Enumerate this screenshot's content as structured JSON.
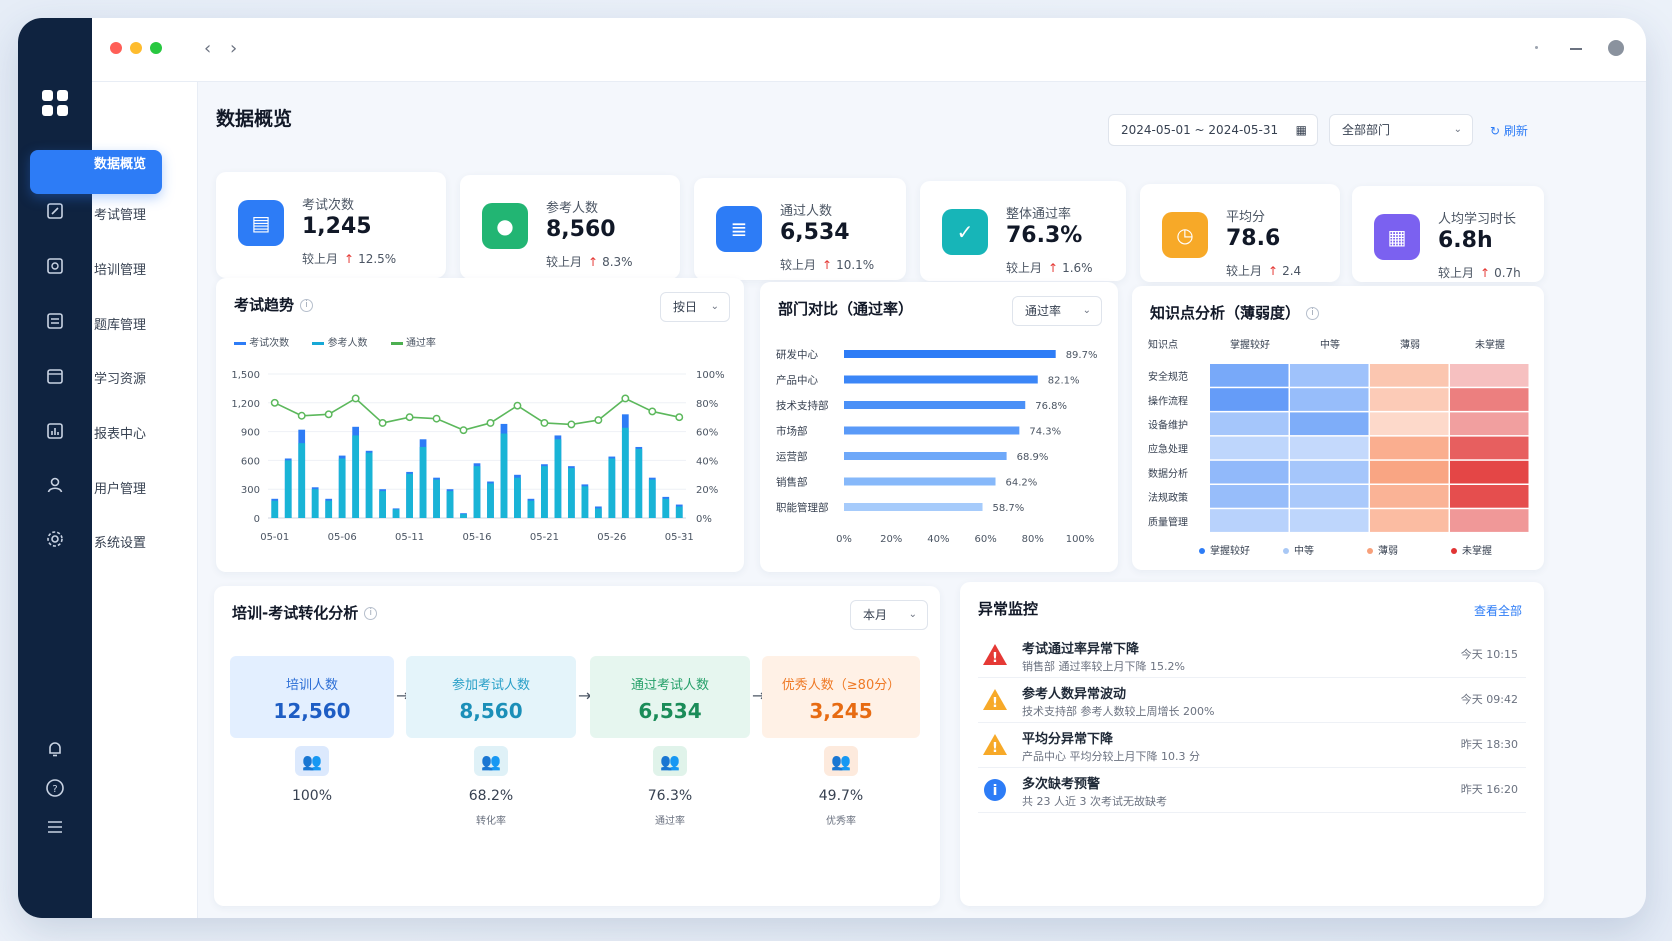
{
  "window": {
    "title": "数据概览"
  },
  "colors": {
    "accent": "#2d7cf6",
    "rail": "#0f2340",
    "up": "#e53935"
  },
  "sidebar": {
    "items": [
      {
        "label": "数据概览",
        "icon": "pie-chart-icon",
        "active": true
      },
      {
        "label": "考试管理",
        "icon": "edit-icon"
      },
      {
        "label": "培训管理",
        "icon": "training-icon"
      },
      {
        "label": "题库管理",
        "icon": "question-bank-icon"
      },
      {
        "label": "学习资源",
        "icon": "folder-icon"
      },
      {
        "label": "报表中心",
        "icon": "report-icon"
      },
      {
        "label": "用户管理",
        "icon": "user-icon"
      },
      {
        "label": "系统设置",
        "icon": "gear-icon"
      }
    ]
  },
  "header": {
    "title": "数据概览",
    "date_range": "2024-05-01 ~ 2024-05-31",
    "dept_select": "全部部门",
    "refresh_label": "刷新"
  },
  "kpis": [
    {
      "label": "考试次数",
      "value": "1,245",
      "compare": "较上月",
      "change": "12.5%",
      "color": "#2d7cf6",
      "icon": "clipboard-icon"
    },
    {
      "label": "参考人数",
      "value": "8,560",
      "compare": "较上月",
      "change": "8.3%",
      "color": "#22b573",
      "icon": "users-icon"
    },
    {
      "label": "通过人数",
      "value": "6,534",
      "compare": "较上月",
      "change": "10.1%",
      "color": "#2d7cf6",
      "icon": "document-icon"
    },
    {
      "label": "整体通过率",
      "value": "76.3%",
      "compare": "较上月",
      "change": "1.6%",
      "color": "#17b5b8",
      "icon": "check-icon"
    },
    {
      "label": "平均分",
      "value": "78.6",
      "compare": "较上月",
      "change": "2.4",
      "color": "#f7a928",
      "icon": "clock-icon"
    },
    {
      "label": "人均学习时长",
      "value": "6.8h",
      "compare": "较上月",
      "change": "0.7h",
      "color": "#7b61f0",
      "icon": "calendar-icon"
    }
  ],
  "trend": {
    "title": "考试趋势",
    "period_select": "按日",
    "legend": [
      "考试次数",
      "参考人数",
      "通过率"
    ]
  },
  "dept": {
    "title": "部门对比（通过率）",
    "select": "通过率"
  },
  "knowledge": {
    "title": "知识点分析（薄弱度）",
    "col_header": "知识点",
    "columns": [
      "掌握较好",
      "中等",
      "薄弱",
      "未掌握"
    ],
    "rows": [
      "安全规范",
      "操作流程",
      "设备维护",
      "应急处理",
      "数据分析",
      "法规政策",
      "质量管理"
    ],
    "legend": [
      "掌握较好",
      "中等",
      "薄弱",
      "未掌握"
    ]
  },
  "funnel": {
    "title": "培训-考试转化分析",
    "select": "本月",
    "stages": [
      {
        "label": "培训人数",
        "value": "12,560",
        "pct": "100%",
        "note": ""
      },
      {
        "label": "参加考试人数",
        "value": "8,560",
        "pct": "68.2%",
        "note": "转化率"
      },
      {
        "label": "通过考试人数",
        "value": "6,534",
        "pct": "76.3%",
        "note": "通过率"
      },
      {
        "label": "优秀人数（≥80分）",
        "value": "3,245",
        "pct": "49.7%",
        "note": "优秀率"
      }
    ]
  },
  "alerts": {
    "title": "异常监控",
    "view_all": "查看全部",
    "items": [
      {
        "title": "考试通过率异常下降",
        "desc": "销售部 通过率较上月下降 15.2%",
        "time": "今天 10:15",
        "level": "error"
      },
      {
        "title": "参考人数异常波动",
        "desc": "技术支持部 参考人数较上周增长 200%",
        "time": "今天 09:42",
        "level": "warning"
      },
      {
        "title": "平均分异常下降",
        "desc": "产品中心 平均分较上月下降 10.3 分",
        "time": "昨天 18:30",
        "level": "warning"
      },
      {
        "title": "多次缺考预警",
        "desc": "共 23 人近 3 次考试无故缺考",
        "time": "昨天 16:20",
        "level": "info"
      }
    ]
  },
  "chart_data": [
    {
      "type": "bar",
      "title": "考试趋势",
      "x": [
        "05-01",
        "05-02",
        "05-03",
        "05-04",
        "05-05",
        "05-06",
        "05-07",
        "05-08",
        "05-09",
        "05-10",
        "05-11",
        "05-12",
        "05-13",
        "05-14",
        "05-15",
        "05-16",
        "05-17",
        "05-18",
        "05-19",
        "05-20",
        "05-21",
        "05-22",
        "05-23",
        "05-24",
        "05-25",
        "05-26",
        "05-27",
        "05-28",
        "05-29",
        "05-30",
        "05-31"
      ],
      "tick_labels": [
        "05-01",
        "05-06",
        "05-11",
        "05-16",
        "05-21",
        "05-26",
        "05-31"
      ],
      "series": [
        {
          "name": "考试次数",
          "values": [
            200,
            620,
            920,
            320,
            200,
            650,
            950,
            700,
            300,
            100,
            480,
            820,
            420,
            300,
            50,
            570,
            380,
            980,
            450,
            200,
            560,
            860,
            540,
            350,
            120,
            640,
            1080,
            740,
            420,
            220,
            140
          ]
        },
        {
          "name": "参考人数",
          "values": [
            180,
            600,
            780,
            300,
            180,
            620,
            860,
            680,
            280,
            90,
            460,
            740,
            400,
            280,
            40,
            540,
            360,
            880,
            420,
            180,
            540,
            820,
            520,
            330,
            100,
            620,
            940,
            720,
            400,
            200,
            120
          ]
        },
        {
          "name": "通过率",
          "axis": "right",
          "values": [
            80,
            72,
            71,
            74,
            72,
            72,
            83,
            74,
            66,
            71,
            70,
            78,
            69,
            68,
            61,
            70,
            66,
            77,
            78,
            77,
            66,
            70,
            65,
            62,
            68,
            73,
            83,
            80,
            74,
            69,
            70
          ]
        }
      ],
      "ylim": [
        0,
        1500
      ],
      "yticks": [
        "0",
        "300",
        "600",
        "900",
        "1,200",
        "1,500"
      ],
      "y2lim": [
        0,
        100
      ],
      "y2ticks": [
        "0%",
        "20%",
        "40%",
        "60%",
        "80%",
        "100%"
      ]
    },
    {
      "type": "bar",
      "title": "部门对比（通过率）",
      "orientation": "horizontal",
      "categories": [
        "研发中心",
        "产品中心",
        "技术支持部",
        "市场部",
        "运营部",
        "销售部",
        "职能管理部"
      ],
      "values": [
        89.7,
        82.1,
        76.8,
        74.3,
        68.9,
        64.2,
        58.7
      ],
      "labels": [
        "89.7%",
        "82.1%",
        "76.8%",
        "74.3%",
        "68.9%",
        "64.2%",
        "58.7%"
      ],
      "xlim": [
        0,
        100
      ],
      "xticks": [
        "0%",
        "20%",
        "40%",
        "60%",
        "80%",
        "100%"
      ]
    },
    {
      "type": "heatmap",
      "title": "知识点分析（薄弱度）",
      "rows": [
        "安全规范",
        "操作流程",
        "设备维护",
        "应急处理",
        "数据分析",
        "法规政策",
        "质量管理"
      ],
      "columns": [
        "掌握较好",
        "中等",
        "薄弱",
        "未掌握"
      ],
      "values": [
        [
          0.75,
          0.45,
          0.4,
          0.2
        ],
        [
          0.9,
          0.5,
          0.35,
          0.6
        ],
        [
          0.4,
          0.7,
          0.2,
          0.4
        ],
        [
          0.2,
          0.15,
          0.65,
          0.8
        ],
        [
          0.55,
          0.4,
          0.75,
          0.95
        ],
        [
          0.5,
          0.35,
          0.6,
          0.9
        ],
        [
          0.25,
          0.2,
          0.5,
          0.45
        ]
      ]
    }
  ]
}
